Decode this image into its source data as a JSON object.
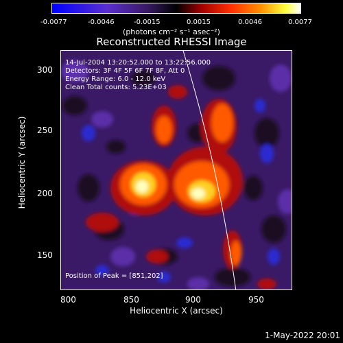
{
  "colorbar": {
    "ticks": [
      "-0.0077",
      "-0.0046",
      "-0.0015",
      "0.0015",
      "0.0046",
      "0.0077"
    ],
    "units": "(photons cm⁻² s⁻¹ asec⁻²)"
  },
  "title": "Reconstructed RHESSI Image",
  "annotations": {
    "time": "14-Jul-2004 13:20:52.000 to 13:22:56.000",
    "detectors": "Detectors: 3F 4F 5F 6F 7F 8F, Att 0",
    "energy": "Energy Range: 6.0 - 12.0 keV",
    "clean": "Clean     Total counts: 5.23E+03",
    "peak": "Position of Peak = [851,202]"
  },
  "axes": {
    "xlabel": "Heliocentric X (arcsec)",
    "ylabel": "Heliocentric Y (arcsec)",
    "xticks": [
      "800",
      "850",
      "900",
      "950"
    ],
    "yticks": [
      "150",
      "200",
      "250",
      "300"
    ],
    "xrange": [
      785,
      977
    ],
    "yrange": [
      122,
      322
    ]
  },
  "footer": {
    "date": "1-May-2022 20:01"
  },
  "colors": {
    "background": "#000000",
    "text": "#ffffff",
    "limb": "#ffffff"
  },
  "colormap": "blue-purple-black-red-orange-yellow-white"
}
